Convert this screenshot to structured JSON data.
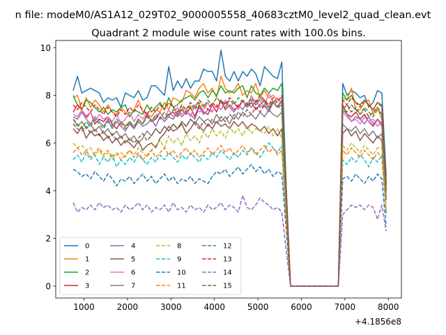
{
  "figure": {
    "suptitle": "n file: modeM0/AS1A12_029T02_9000005558_40683cztM0_level2_quad_clean.evt",
    "title": "Quadrant 2 module wise count rates with 100.0s bins."
  },
  "chart_data": {
    "type": "line",
    "title": "Quadrant 2 module wise count rates with 100.0s bins.",
    "xlabel": "",
    "ylabel": "",
    "x_offset_text": "+4.1856e8",
    "xlim": [
      350,
      8300
    ],
    "ylim": [
      -0.5,
      10.3
    ],
    "xticks": [
      1000,
      2000,
      3000,
      4000,
      5000,
      6000,
      7000,
      8000
    ],
    "xtick_labels": [
      "1000",
      "2000",
      "3000",
      "4000",
      "5000",
      "6000",
      "7000",
      "8000"
    ],
    "yticks": [
      0,
      2,
      4,
      6,
      8,
      10
    ],
    "ytick_labels": [
      "0",
      "2",
      "4",
      "6",
      "8",
      "10"
    ],
    "grid": false,
    "legend": {
      "placement": "lower-left",
      "columns": 4
    },
    "x": [
      750,
      850,
      950,
      1050,
      1150,
      1250,
      1350,
      1450,
      1550,
      1650,
      1750,
      1850,
      1950,
      2050,
      2150,
      2250,
      2350,
      2450,
      2550,
      2650,
      2750,
      2850,
      2950,
      3050,
      3150,
      3250,
      3350,
      3450,
      3550,
      3650,
      3750,
      3850,
      3950,
      4050,
      4150,
      4250,
      4350,
      4450,
      4550,
      4650,
      4750,
      4850,
      4950,
      5050,
      5150,
      5250,
      5350,
      5450,
      5550,
      5650,
      5750,
      6850,
      6950,
      7050,
      7150,
      7250,
      7350,
      7450,
      7550,
      7650,
      7750,
      7850,
      7950
    ],
    "gap_x": [
      5850,
      6750
    ],
    "series": [
      {
        "name": "0",
        "color": "#1f77b4",
        "dashed": false,
        "values": [
          8.2,
          8.8,
          8.1,
          8.2,
          8.3,
          8.2,
          8.1,
          7.7,
          7.9,
          7.8,
          7.9,
          7.5,
          8.1,
          8.0,
          7.9,
          8.2,
          7.8,
          7.9,
          8.4,
          8.4,
          8.2,
          8.0,
          9.2,
          8.2,
          8.6,
          8.3,
          8.7,
          8.3,
          8.6,
          8.6,
          9.1,
          9.0,
          9.0,
          8.6,
          9.9,
          8.8,
          8.6,
          9.0,
          8.6,
          9.0,
          8.8,
          9.1,
          8.9,
          8.4,
          9.2,
          9.0,
          8.8,
          8.7,
          9.4,
          4.2,
          0.0,
          0.0,
          8.5,
          8.0,
          8.2,
          8.1,
          7.9,
          8.0,
          7.5,
          7.7,
          8.2,
          8.1,
          4.6
        ]
      },
      {
        "name": "1",
        "color": "#ff7f0e",
        "dashed": false,
        "values": [
          7.9,
          8.0,
          7.4,
          7.9,
          7.5,
          7.8,
          7.6,
          7.3,
          7.6,
          7.3,
          7.2,
          7.5,
          7.3,
          7.1,
          7.4,
          7.8,
          7.3,
          7.2,
          7.1,
          7.4,
          7.3,
          7.7,
          7.4,
          7.9,
          7.8,
          7.7,
          8.2,
          8.1,
          7.9,
          8.3,
          8.5,
          8.1,
          8.3,
          7.9,
          8.8,
          8.3,
          8.1,
          8.2,
          8.5,
          8.0,
          8.2,
          8.1,
          8.5,
          7.9,
          8.2,
          7.9,
          8.0,
          7.8,
          7.9,
          3.9,
          0.0,
          0.0,
          7.9,
          7.8,
          8.3,
          7.4,
          7.4,
          7.7,
          7.8,
          7.2,
          7.5,
          7.0,
          4.4
        ]
      },
      {
        "name": "2",
        "color": "#2ca02c",
        "dashed": false,
        "values": [
          8.0,
          7.6,
          7.4,
          7.8,
          7.7,
          7.5,
          7.3,
          7.5,
          7.2,
          7.4,
          7.3,
          7.5,
          7.6,
          7.1,
          7.4,
          7.3,
          7.2,
          7.6,
          7.3,
          7.5,
          7.7,
          7.4,
          7.9,
          7.5,
          7.6,
          7.8,
          7.9,
          8.0,
          7.8,
          8.1,
          8.2,
          7.9,
          8.2,
          8.0,
          8.4,
          8.1,
          8.2,
          8.1,
          8.3,
          8.4,
          7.9,
          8.4,
          8.1,
          8.0,
          8.3,
          8.1,
          8.3,
          8.2,
          8.5,
          4.1,
          0.0,
          0.0,
          8.1,
          7.8,
          8.0,
          7.7,
          7.6,
          7.8,
          7.6,
          7.4,
          7.7,
          7.6,
          4.3
        ]
      },
      {
        "name": "3",
        "color": "#d62728",
        "dashed": false,
        "values": [
          7.3,
          7.6,
          7.4,
          7.1,
          7.3,
          6.8,
          7.0,
          6.9,
          7.1,
          6.8,
          6.6,
          6.9,
          6.7,
          6.9,
          6.6,
          7.0,
          6.8,
          7.2,
          6.9,
          7.0,
          7.3,
          7.0,
          7.2,
          7.3,
          7.1,
          7.4,
          7.2,
          7.5,
          7.1,
          7.6,
          7.3,
          7.2,
          7.6,
          7.3,
          7.8,
          7.4,
          7.6,
          7.4,
          7.5,
          7.8,
          7.5,
          7.7,
          7.4,
          7.6,
          7.8,
          7.5,
          7.7,
          7.5,
          7.8,
          3.8,
          0.0,
          0.0,
          7.6,
          7.2,
          7.1,
          7.3,
          7.0,
          7.2,
          6.9,
          6.7,
          7.0,
          6.8,
          4.0
        ]
      },
      {
        "name": "4",
        "color": "#9467bd",
        "dashed": false,
        "values": [
          7.1,
          7.0,
          7.3,
          7.0,
          6.8,
          7.1,
          6.9,
          6.7,
          7.0,
          6.6,
          6.9,
          6.7,
          6.5,
          6.8,
          6.6,
          6.9,
          6.7,
          6.8,
          7.0,
          6.7,
          7.1,
          6.9,
          7.1,
          7.0,
          7.3,
          7.1,
          7.3,
          7.2,
          7.0,
          7.5,
          7.2,
          7.4,
          7.3,
          7.6,
          7.4,
          7.7,
          7.5,
          7.3,
          7.6,
          7.4,
          7.7,
          7.5,
          7.8,
          7.5,
          7.6,
          7.3,
          7.7,
          7.5,
          7.6,
          3.7,
          0.0,
          0.0,
          7.4,
          7.2,
          6.9,
          7.1,
          7.0,
          6.8,
          7.1,
          6.8,
          7.0,
          6.7,
          3.9
        ]
      },
      {
        "name": "5",
        "color": "#8c564b",
        "dashed": false,
        "values": [
          6.6,
          6.4,
          6.7,
          6.2,
          6.5,
          6.3,
          6.4,
          6.1,
          6.3,
          6.0,
          6.2,
          5.9,
          6.1,
          6.0,
          5.8,
          6.1,
          5.7,
          5.9,
          6.0,
          5.8,
          6.2,
          6.4,
          6.7,
          6.5,
          6.6,
          6.8,
          6.4,
          6.6,
          6.9,
          6.7,
          6.5,
          6.8,
          6.6,
          6.9,
          6.7,
          6.8,
          6.6,
          6.9,
          6.7,
          6.9,
          6.6,
          6.8,
          6.7,
          6.5,
          6.7,
          6.4,
          6.6,
          6.3,
          6.6,
          3.3,
          0.0,
          0.0,
          6.4,
          6.6,
          6.3,
          6.5,
          6.1,
          6.4,
          6.2,
          6.0,
          6.3,
          6.1,
          3.6
        ]
      },
      {
        "name": "6",
        "color": "#e377c2",
        "dashed": false,
        "values": [
          7.2,
          7.1,
          7.4,
          7.0,
          7.3,
          6.9,
          7.2,
          7.0,
          7.1,
          6.9,
          7.2,
          6.8,
          7.0,
          7.3,
          6.9,
          7.2,
          7.0,
          7.3,
          6.9,
          7.1,
          7.3,
          7.0,
          7.4,
          7.1,
          7.5,
          7.2,
          7.4,
          7.1,
          7.6,
          7.3,
          7.4,
          7.7,
          7.3,
          7.6,
          7.4,
          7.8,
          7.5,
          7.7,
          7.4,
          7.8,
          7.5,
          8.0,
          7.6,
          7.8,
          7.5,
          8.1,
          7.7,
          7.9,
          7.6,
          3.8,
          0.0,
          0.0,
          7.3,
          7.1,
          6.9,
          7.0,
          6.8,
          7.1,
          6.9,
          7.0,
          6.7,
          6.9,
          4.0
        ]
      },
      {
        "name": "7",
        "color": "#7f7f7f",
        "dashed": false,
        "values": [
          7.0,
          6.7,
          6.9,
          6.6,
          6.8,
          6.5,
          6.7,
          6.4,
          6.6,
          6.3,
          6.5,
          6.2,
          6.4,
          6.1,
          6.3,
          6.0,
          6.2,
          6.5,
          6.3,
          6.6,
          6.4,
          6.7,
          6.5,
          6.8,
          6.6,
          6.9,
          6.7,
          7.0,
          6.8,
          7.1,
          6.9,
          7.0,
          6.8,
          7.2,
          6.9,
          7.1,
          6.8,
          7.2,
          7.0,
          7.3,
          7.1,
          7.2,
          7.0,
          7.3,
          7.1,
          7.4,
          7.2,
          7.1,
          7.3,
          3.6,
          0.0,
          0.0,
          6.8,
          6.6,
          6.5,
          6.7,
          6.4,
          6.6,
          6.3,
          6.5,
          6.2,
          6.4,
          3.7
        ]
      },
      {
        "name": "8",
        "color": "#bcbd22",
        "dashed": true,
        "values": [
          6.0,
          5.8,
          5.9,
          5.7,
          5.8,
          5.5,
          5.7,
          5.4,
          5.6,
          5.3,
          5.5,
          5.6,
          5.4,
          5.7,
          5.5,
          5.8,
          5.6,
          5.4,
          5.7,
          5.9,
          6.1,
          5.8,
          6.3,
          6.0,
          6.2,
          5.9,
          6.4,
          6.1,
          6.3,
          6.0,
          6.5,
          6.2,
          6.6,
          6.3,
          6.5,
          6.2,
          6.7,
          6.4,
          6.6,
          6.3,
          6.7,
          6.4,
          6.6,
          6.5,
          6.4,
          6.7,
          6.3,
          6.6,
          6.2,
          3.1,
          0.0,
          0.0,
          5.9,
          5.7,
          6.0,
          5.8,
          5.6,
          5.9,
          5.7,
          5.5,
          5.8,
          5.8,
          3.2
        ]
      },
      {
        "name": "9",
        "color": "#17becf",
        "dashed": true,
        "values": [
          5.3,
          5.5,
          5.2,
          5.6,
          5.3,
          5.5,
          5.1,
          5.4,
          5.2,
          5.5,
          5.0,
          5.3,
          5.1,
          5.4,
          5.2,
          5.5,
          5.3,
          5.1,
          5.4,
          5.2,
          5.5,
          5.3,
          5.6,
          5.4,
          5.2,
          5.5,
          5.3,
          5.6,
          5.4,
          5.2,
          5.5,
          5.3,
          5.6,
          5.4,
          5.7,
          5.5,
          5.3,
          5.6,
          5.4,
          5.7,
          5.5,
          5.8,
          5.6,
          5.4,
          5.7,
          6.0,
          5.8,
          5.6,
          5.9,
          2.9,
          0.0,
          0.0,
          5.3,
          5.1,
          5.4,
          5.2,
          5.5,
          5.3,
          5.0,
          5.4,
          5.2,
          5.5,
          3.0
        ]
      },
      {
        "name": "10",
        "color": "#1f77b4",
        "dashed": true,
        "values": [
          4.9,
          4.8,
          4.6,
          4.7,
          4.5,
          4.8,
          4.6,
          4.4,
          4.7,
          4.5,
          4.2,
          4.5,
          4.4,
          4.6,
          4.3,
          4.5,
          4.7,
          4.4,
          4.6,
          4.3,
          4.5,
          4.7,
          4.4,
          4.6,
          4.3,
          4.5,
          4.4,
          4.6,
          4.3,
          4.5,
          4.4,
          4.3,
          4.6,
          4.8,
          4.7,
          4.9,
          4.6,
          4.8,
          5.0,
          4.7,
          4.9,
          5.1,
          4.8,
          5.0,
          4.7,
          4.9,
          4.6,
          4.8,
          4.7,
          2.4,
          0.0,
          0.0,
          4.5,
          4.6,
          4.4,
          4.7,
          4.5,
          4.3,
          4.6,
          4.4,
          4.7,
          4.5,
          2.5
        ]
      },
      {
        "name": "11",
        "color": "#ff7f0e",
        "dashed": true,
        "values": [
          5.6,
          5.8,
          5.5,
          5.7,
          5.4,
          5.6,
          5.8,
          5.5,
          5.7,
          5.4,
          5.6,
          5.3,
          5.5,
          5.7,
          5.4,
          5.6,
          5.3,
          5.5,
          5.7,
          5.4,
          5.6,
          5.8,
          5.5,
          5.7,
          5.4,
          5.6,
          5.8,
          5.5,
          5.7,
          5.4,
          5.6,
          5.8,
          5.5,
          5.7,
          5.9,
          5.6,
          5.8,
          5.5,
          5.7,
          5.9,
          5.6,
          5.8,
          5.5,
          5.7,
          5.9,
          5.6,
          5.8,
          5.5,
          5.7,
          2.8,
          0.0,
          0.0,
          5.7,
          5.5,
          5.8,
          5.6,
          5.4,
          5.7,
          5.5,
          5.3,
          5.6,
          5.4,
          3.1
        ]
      },
      {
        "name": "12",
        "color": "#2ca02c",
        "dashed": true,
        "values": [
          7.0,
          6.8,
          6.6,
          6.9,
          6.7,
          7.0,
          6.8,
          6.6,
          6.9,
          6.7,
          7.0,
          6.8,
          6.6,
          6.9,
          6.7,
          7.0,
          6.8,
          7.1,
          6.9,
          7.2,
          7.0,
          7.3,
          7.1,
          7.4,
          7.2,
          7.5,
          7.3,
          7.6,
          7.4,
          7.7,
          7.5,
          7.8,
          7.6,
          7.9,
          7.7,
          7.5,
          7.8,
          7.6,
          7.9,
          7.7,
          7.5,
          7.8,
          7.6,
          7.9,
          7.7,
          7.5,
          7.8,
          7.6,
          7.4,
          3.7,
          0.0,
          0.0,
          7.5,
          7.3,
          7.6,
          7.4,
          7.2,
          7.5,
          7.3,
          7.1,
          7.4,
          7.2,
          4.0
        ]
      },
      {
        "name": "13",
        "color": "#d62728",
        "dashed": true,
        "values": [
          7.6,
          7.4,
          7.7,
          7.5,
          7.3,
          7.6,
          7.4,
          7.2,
          7.5,
          7.3,
          7.1,
          7.4,
          7.2,
          7.5,
          7.3,
          7.6,
          7.4,
          7.2,
          7.5,
          7.3,
          7.6,
          7.4,
          7.7,
          7.5,
          7.3,
          7.6,
          7.4,
          7.7,
          7.5,
          7.8,
          7.6,
          7.4,
          7.7,
          7.5,
          7.8,
          7.6,
          7.9,
          7.7,
          7.5,
          7.8,
          7.6,
          7.9,
          7.7,
          8.0,
          7.8,
          7.6,
          7.9,
          7.7,
          8.0,
          4.0,
          0.0,
          0.0,
          7.8,
          7.6,
          7.9,
          7.7,
          7.5,
          7.8,
          7.6,
          7.4,
          7.7,
          7.5,
          4.2
        ]
      },
      {
        "name": "14",
        "color": "#9467bd",
        "dashed": true,
        "values": [
          3.5,
          3.1,
          3.3,
          3.2,
          3.4,
          3.2,
          3.5,
          3.3,
          3.4,
          3.2,
          3.3,
          3.1,
          3.4,
          3.2,
          3.3,
          3.5,
          3.2,
          3.4,
          3.1,
          3.3,
          3.2,
          3.4,
          3.1,
          3.5,
          3.2,
          3.3,
          3.1,
          3.4,
          3.2,
          3.3,
          3.1,
          3.4,
          3.2,
          3.3,
          3.5,
          3.2,
          3.4,
          3.3,
          3.1,
          3.8,
          3.3,
          3.2,
          3.4,
          3.7,
          3.5,
          3.4,
          3.2,
          3.3,
          3.1,
          1.5,
          0.0,
          0.0,
          3.0,
          3.2,
          3.4,
          3.3,
          3.4,
          3.2,
          3.4,
          3.3,
          2.8,
          3.4,
          2.3
        ]
      },
      {
        "name": "15",
        "color": "#8c564b",
        "dashed": true,
        "values": [
          6.8,
          6.6,
          6.5,
          6.7,
          6.4,
          6.6,
          6.3,
          6.5,
          6.2,
          6.4,
          6.1,
          6.3,
          6.0,
          6.2,
          6.0,
          6.2,
          6.4,
          6.1,
          6.3,
          6.6,
          6.4,
          6.7,
          6.5,
          6.8,
          6.6,
          6.9,
          6.7,
          7.0,
          6.8,
          6.6,
          6.9,
          6.7,
          7.0,
          6.8,
          7.1,
          6.9,
          7.2,
          7.0,
          7.3,
          7.1,
          7.4,
          7.2,
          7.5,
          7.3,
          7.6,
          7.4,
          7.7,
          7.5,
          7.8,
          3.9,
          0.0,
          0.0,
          7.4,
          7.6,
          7.3,
          7.5,
          7.2,
          7.4,
          7.1,
          7.3,
          7.5,
          7.2,
          4.1
        ]
      }
    ]
  }
}
